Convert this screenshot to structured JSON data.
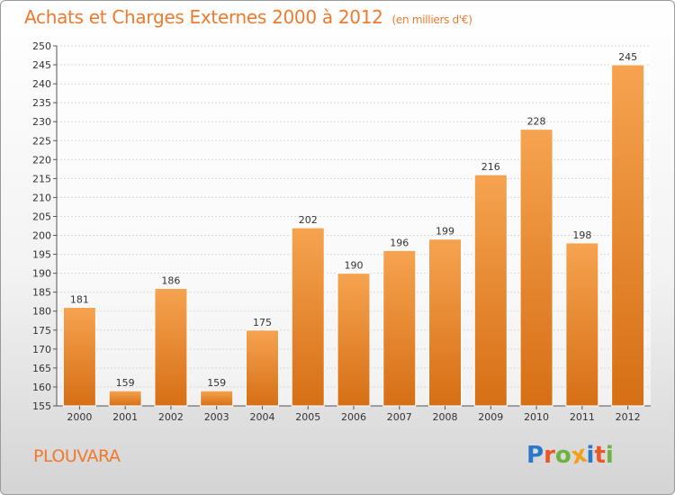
{
  "title": "Achats et Charges Externes 2000 à 2012",
  "subtitle": "(en milliers d'€)",
  "city": "PLOUVARA",
  "logo": {
    "text": "Proxiti",
    "letters": [
      {
        "char": "P",
        "color": "#2a78c8"
      },
      {
        "char": "r",
        "color": "#e8562a"
      },
      {
        "char": "o",
        "color": "#6cb33f"
      },
      {
        "char": "x",
        "color": "#f2a01c"
      },
      {
        "char": "i",
        "color": "#2a78c8"
      },
      {
        "char": "t",
        "color": "#e8562a"
      },
      {
        "char": "i",
        "color": "#6cb33f"
      }
    ]
  },
  "colors": {
    "accent": "#ee7a2e",
    "bar_top": "#f6a350",
    "bar_bottom": "#d66f15",
    "bar_edge": "#ffffff"
  },
  "chart_data": {
    "type": "bar",
    "title": "Achats et Charges Externes 2000 à 2012",
    "subtitle": "(en milliers d'€)",
    "categories": [
      "2000",
      "2001",
      "2002",
      "2003",
      "2004",
      "2005",
      "2006",
      "2007",
      "2008",
      "2009",
      "2010",
      "2011",
      "2012"
    ],
    "values": [
      181,
      159,
      186,
      159,
      175,
      202,
      190,
      196,
      199,
      216,
      228,
      198,
      245
    ],
    "ylim": [
      155,
      250
    ],
    "yticks": [
      155,
      160,
      165,
      170,
      175,
      180,
      185,
      190,
      195,
      200,
      205,
      210,
      215,
      220,
      225,
      230,
      235,
      240,
      245,
      250
    ],
    "grid": true,
    "data_labels": true
  }
}
